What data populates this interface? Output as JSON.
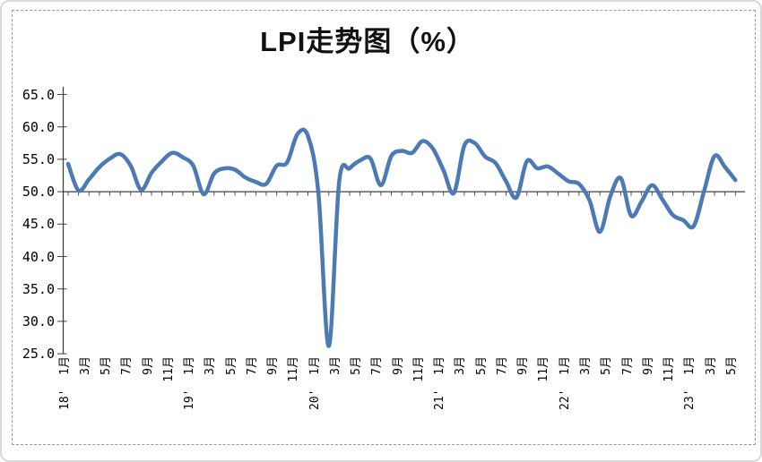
{
  "title": "LPI走势图（%）",
  "colors": {
    "line": "#4b7ab5",
    "axis": "#404040",
    "frame": "#9a9a9a",
    "outer_border": "#d9d9d9",
    "text": "#000000"
  },
  "y_axis": {
    "tick_labels": [
      "65.0",
      "60.0",
      "55.0",
      "50.0",
      "45.0",
      "40.0",
      "35.0",
      "30.0",
      "25.0"
    ],
    "min": 25.0,
    "max": 65.0,
    "step": 5.0
  },
  "x_axis": {
    "tick_labels": [
      "18'  1月",
      "3月",
      "5月",
      "7月",
      "9月",
      "11月",
      "19'  1月",
      "3月",
      "5月",
      "7月",
      "9月",
      "11月",
      "20'  1月",
      "3月",
      "5月",
      "7月",
      "9月",
      "11月",
      "21'  1月",
      "3月",
      "5月",
      "7月",
      "9月",
      "11月",
      "22'  1月",
      "3月",
      "5月",
      "7月",
      "9月",
      "11月",
      "23'  1月",
      "3月",
      "5月"
    ],
    "months_per_label": 2
  },
  "chart_data": {
    "type": "line",
    "title": "LPI走势图（%）",
    "smooth": true,
    "grid": false,
    "legend": "none",
    "baseline": 50.0,
    "ylim": [
      25.0,
      65.0
    ],
    "x": [
      "2018-01",
      "2018-02",
      "2018-03",
      "2018-04",
      "2018-05",
      "2018-06",
      "2018-07",
      "2018-08",
      "2018-09",
      "2018-10",
      "2018-11",
      "2018-12",
      "2019-01",
      "2019-02",
      "2019-03",
      "2019-04",
      "2019-05",
      "2019-06",
      "2019-07",
      "2019-08",
      "2019-09",
      "2019-10",
      "2019-11",
      "2019-12",
      "2020-01",
      "2020-02",
      "2020-03",
      "2020-04",
      "2020-05",
      "2020-06",
      "2020-07",
      "2020-08",
      "2020-09",
      "2020-10",
      "2020-11",
      "2020-12",
      "2021-01",
      "2021-02",
      "2021-03",
      "2021-04",
      "2021-05",
      "2021-06",
      "2021-07",
      "2021-08",
      "2021-09",
      "2021-10",
      "2021-11",
      "2021-12",
      "2022-01",
      "2022-02",
      "2022-03",
      "2022-04",
      "2022-05",
      "2022-06",
      "2022-07",
      "2022-08",
      "2022-09",
      "2022-10",
      "2022-11",
      "2022-12",
      "2023-01",
      "2023-02",
      "2023-03",
      "2023-04",
      "2023-05"
    ],
    "values": [
      54.3,
      50.2,
      51.9,
      53.8,
      55.1,
      55.8,
      54.0,
      50.3,
      52.9,
      54.7,
      56.0,
      55.3,
      54.0,
      49.6,
      52.8,
      53.6,
      53.4,
      52.2,
      51.5,
      51.2,
      54.0,
      54.5,
      58.9,
      58.6,
      49.9,
      26.2,
      51.6,
      53.6,
      54.8,
      55.1,
      51.0,
      55.5,
      56.3,
      56.0,
      57.8,
      56.6,
      53.3,
      49.8,
      57.1,
      57.5,
      55.4,
      54.4,
      51.6,
      49.1,
      54.7,
      53.6,
      53.9,
      52.8,
      51.6,
      51.2,
      48.7,
      43.8,
      49.3,
      52.1,
      46.3,
      48.5,
      51.0,
      48.8,
      46.4,
      45.6,
      44.7,
      50.1,
      55.5,
      53.8,
      51.8
    ]
  }
}
